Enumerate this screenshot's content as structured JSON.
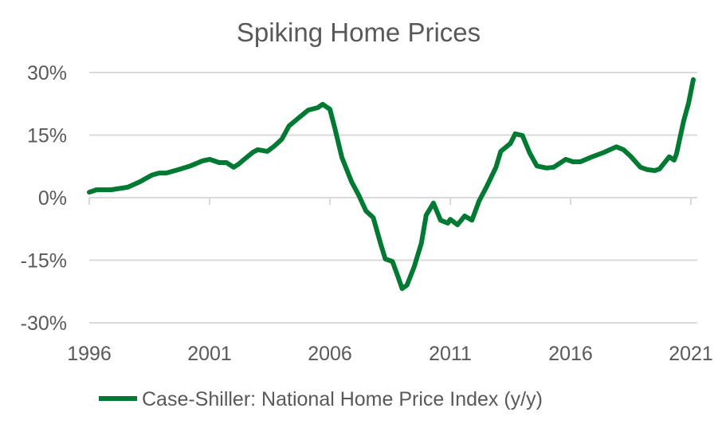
{
  "chart_data": {
    "type": "line",
    "title": "Spiking Home Prices",
    "xlabel": "",
    "ylabel": "",
    "xlim": [
      1996,
      2021.3
    ],
    "ylim": [
      -30,
      30
    ],
    "x_ticks": [
      1996,
      2001,
      2006,
      2011,
      2016,
      2021
    ],
    "x_tick_labels": [
      "1996",
      "2001",
      "2006",
      "2011",
      "2016",
      "2021"
    ],
    "y_ticks": [
      30,
      15,
      0,
      -15,
      -30
    ],
    "y_tick_labels": [
      "30%",
      "15%",
      "0%",
      "-15%",
      "-30%"
    ],
    "grid": "horizontal",
    "legend_position": "bottom",
    "colors": {
      "series": "#007A33",
      "grid": "#D9D9D9",
      "text": "#595959"
    },
    "series": [
      {
        "name": "Case-Shiller: National Home Price Index (y/y)",
        "x": [
          1996.0,
          1996.3,
          1996.9,
          1997.6,
          1998.1,
          1998.6,
          1998.9,
          1999.2,
          1999.7,
          2000.2,
          2000.7,
          2001.0,
          2001.4,
          2001.7,
          2002.0,
          2002.2,
          2002.4,
          2002.8,
          2003.0,
          2003.4,
          2003.7,
          2004.0,
          2004.3,
          2004.7,
          2005.1,
          2005.5,
          2005.7,
          2006.0,
          2006.2,
          2006.5,
          2006.9,
          2007.2,
          2007.5,
          2007.8,
          2008.1,
          2008.3,
          2008.6,
          2008.8,
          2009.0,
          2009.2,
          2009.5,
          2009.8,
          2010.0,
          2010.3,
          2010.6,
          2010.9,
          2011.0,
          2011.3,
          2011.6,
          2011.9,
          2012.2,
          2012.5,
          2012.9,
          2013.1,
          2013.5,
          2013.7,
          2014.0,
          2014.3,
          2014.6,
          2015.0,
          2015.3,
          2015.8,
          2016.1,
          2016.4,
          2016.9,
          2017.4,
          2017.9,
          2018.2,
          2018.5,
          2018.9,
          2019.2,
          2019.5,
          2019.7,
          2020.1,
          2020.3,
          2020.4,
          2020.7,
          2020.9,
          2021.1
        ],
        "y": [
          1.3,
          1.9,
          1.9,
          2.5,
          3.8,
          5.4,
          5.9,
          5.9,
          6.7,
          7.6,
          8.8,
          9.2,
          8.4,
          8.4,
          7.3,
          8.0,
          9.0,
          10.9,
          11.5,
          11.1,
          12.4,
          14.0,
          17.2,
          19.1,
          21.0,
          21.6,
          22.4,
          21.2,
          16.8,
          9.6,
          3.8,
          0.6,
          -3.2,
          -4.8,
          -10.9,
          -14.7,
          -15.3,
          -18.5,
          -21.8,
          -21.0,
          -16.6,
          -10.9,
          -4.2,
          -1.3,
          -5.4,
          -6.1,
          -5.2,
          -6.5,
          -4.4,
          -5.4,
          -0.8,
          2.5,
          7.3,
          11.1,
          13.0,
          15.3,
          14.9,
          10.7,
          7.6,
          7.1,
          7.3,
          9.2,
          8.6,
          8.6,
          9.8,
          10.9,
          12.2,
          11.5,
          9.9,
          7.3,
          6.7,
          6.5,
          6.9,
          9.8,
          9.0,
          10.5,
          18.4,
          22.6,
          28.3
        ]
      }
    ]
  }
}
